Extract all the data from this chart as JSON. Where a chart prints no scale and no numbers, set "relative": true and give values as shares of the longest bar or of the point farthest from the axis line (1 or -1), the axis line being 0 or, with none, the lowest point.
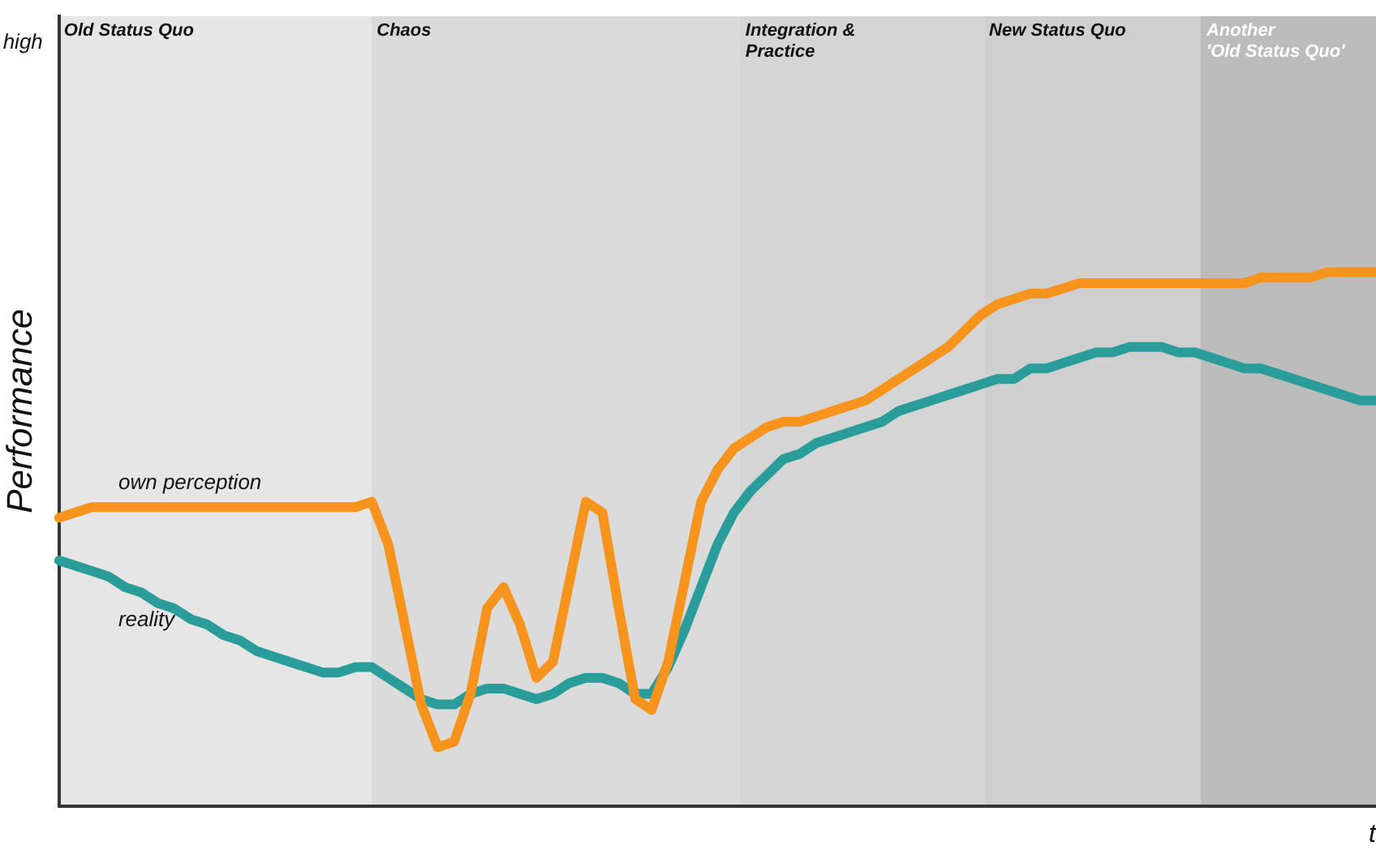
{
  "chart_data": {
    "type": "line",
    "relative": true,
    "xlabel": "t",
    "ylabel": "Performance",
    "line_style": "solid",
    "annotations": [
      "high",
      "Old Status Quo",
      "Chaos",
      "Integration &\nPractice",
      "New Status Quo",
      "Another\n'Old Status Quo'"
    ],
    "categories": [
      null,
      null,
      null,
      null,
      null,
      null,
      null,
      null,
      null,
      null,
      null,
      null,
      null,
      null,
      null,
      null,
      null,
      null,
      null,
      null,
      null,
      null,
      null,
      null,
      null,
      null,
      null,
      null,
      null,
      null,
      null,
      null,
      null,
      null,
      null,
      null,
      null,
      null,
      null,
      null,
      null,
      null,
      null,
      null,
      null,
      null,
      null,
      null,
      null,
      null,
      null,
      null,
      null,
      null,
      null,
      null,
      null,
      null,
      null,
      null,
      null,
      null,
      null,
      null,
      null,
      null,
      null,
      null,
      null,
      null,
      null,
      null,
      null,
      null,
      null,
      null,
      null,
      null,
      null,
      null,
      null
    ],
    "series": [
      {
        "name": "own perception",
        "color": "#f7941d",
        "values": [
          0.54,
          0.55,
          0.56,
          0.56,
          0.56,
          0.56,
          0.56,
          0.56,
          0.56,
          0.56,
          0.56,
          0.56,
          0.56,
          0.56,
          0.56,
          0.56,
          0.56,
          0.56,
          0.56,
          0.57,
          0.49,
          0.34,
          0.19,
          0.11,
          0.12,
          0.21,
          0.37,
          0.41,
          0.34,
          0.24,
          0.27,
          0.42,
          0.57,
          0.55,
          0.37,
          0.2,
          0.18,
          0.27,
          0.42,
          0.57,
          0.63,
          0.67,
          0.69,
          0.71,
          0.72,
          0.72,
          0.73,
          0.74,
          0.75,
          0.76,
          0.78,
          0.8,
          0.82,
          0.84,
          0.86,
          0.89,
          0.92,
          0.94,
          0.95,
          0.96,
          0.96,
          0.97,
          0.98,
          0.98,
          0.98,
          0.98,
          0.98,
          0.98,
          0.98,
          0.98,
          0.98,
          0.98,
          0.98,
          0.99,
          0.99,
          0.99,
          0.99,
          1,
          1,
          1,
          1
        ]
      },
      {
        "name": "reality",
        "color": "#2a9d9a",
        "values": [
          0.46,
          0.45,
          0.44,
          0.43,
          0.41,
          0.4,
          0.38,
          0.37,
          0.35,
          0.34,
          0.32,
          0.31,
          0.29,
          0.28,
          0.27,
          0.26,
          0.25,
          0.25,
          0.26,
          0.26,
          0.24,
          0.22,
          0.2,
          0.19,
          0.19,
          0.21,
          0.22,
          0.22,
          0.21,
          0.2,
          0.21,
          0.23,
          0.24,
          0.24,
          0.23,
          0.21,
          0.21,
          0.26,
          0.33,
          0.41,
          0.49,
          0.55,
          0.59,
          0.62,
          0.65,
          0.66,
          0.68,
          0.69,
          0.7,
          0.71,
          0.72,
          0.74,
          0.75,
          0.76,
          0.77,
          0.78,
          0.79,
          0.8,
          0.8,
          0.82,
          0.82,
          0.83,
          0.84,
          0.85,
          0.85,
          0.86,
          0.86,
          0.86,
          0.85,
          0.85,
          0.84,
          0.83,
          0.82,
          0.82,
          0.81,
          0.8,
          0.79,
          0.78,
          0.77,
          0.76,
          0.76
        ]
      }
    ]
  }
}
